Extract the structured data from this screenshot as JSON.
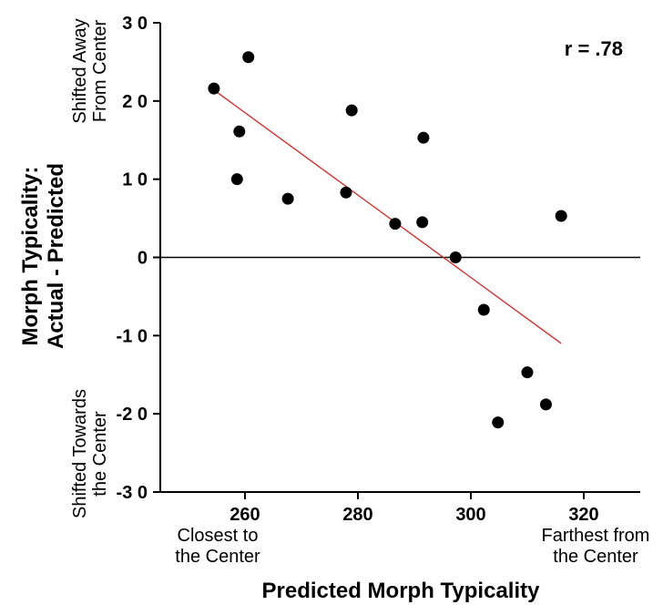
{
  "chart_data": {
    "type": "scatter",
    "correlation_label": "r = .78",
    "xlabel": "Predicted Morph Typicality",
    "ylabel_lines": [
      "Morph Typicality:",
      "Actual - Predicted"
    ],
    "xlim": [
      245,
      330
    ],
    "ylim": [
      -30,
      30
    ],
    "x_ticks": [
      260,
      280,
      300,
      320
    ],
    "y_ticks": [
      30,
      20,
      10,
      0,
      -10,
      -20,
      -30
    ],
    "x_tick_labels": [
      "260",
      "280",
      "300",
      "320"
    ],
    "y_tick_labels": [
      "3 0",
      "2 0",
      "1 0",
      "0",
      "-1 0",
      "-2 0",
      "-3 0"
    ],
    "x_annotations": {
      "left": [
        "Closest to",
        "the Center"
      ],
      "right": [
        "Farthest from",
        "the Center"
      ]
    },
    "y_annotations": {
      "top": [
        "Shifted Away",
        "From Center"
      ],
      "bottom": [
        "Shifted Towards",
        "the Center"
      ]
    },
    "zero_line": true,
    "points": [
      {
        "x": 254.5,
        "y": 21.6
      },
      {
        "x": 260.6,
        "y": 25.6
      },
      {
        "x": 259.0,
        "y": 16.1
      },
      {
        "x": 258.6,
        "y": 10.0
      },
      {
        "x": 267.6,
        "y": 7.5
      },
      {
        "x": 278.9,
        "y": 18.8
      },
      {
        "x": 277.9,
        "y": 8.3
      },
      {
        "x": 286.6,
        "y": 4.3
      },
      {
        "x": 291.6,
        "y": 15.3
      },
      {
        "x": 291.4,
        "y": 4.5
      },
      {
        "x": 297.3,
        "y": 0.0
      },
      {
        "x": 302.3,
        "y": -6.7
      },
      {
        "x": 304.8,
        "y": -21.1
      },
      {
        "x": 310.0,
        "y": -14.7
      },
      {
        "x": 313.3,
        "y": -18.8
      },
      {
        "x": 316.0,
        "y": 5.3
      }
    ],
    "fit_line": {
      "x": [
        254.5,
        316.0
      ],
      "y": [
        21.4,
        -11.0
      ]
    },
    "colors": {
      "points": "#000000",
      "fit_line": "#dd2222",
      "axes": "#000000"
    },
    "grid": false
  }
}
